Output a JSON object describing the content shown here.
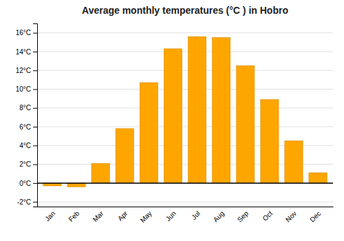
{
  "chart_data": {
    "type": "bar",
    "title": "Average monthly temperatures (°C ) in Hobro",
    "categories": [
      "Jan",
      "Feb",
      "Mar",
      "Apr",
      "May",
      "Jun",
      "Jul",
      "Aug",
      "Sep",
      "Oct",
      "Nov",
      "Dec"
    ],
    "values": [
      -0.3,
      -0.4,
      2.1,
      5.8,
      10.7,
      14.3,
      15.6,
      15.5,
      12.5,
      8.9,
      4.5,
      1.1
    ],
    "color": "#FFA500",
    "ylim": [
      -2.5,
      17
    ],
    "yticks": [
      {
        "value": -2,
        "label": "-2°C"
      },
      {
        "value": 0,
        "label": "0°C"
      },
      {
        "value": 2,
        "label": "2°C"
      },
      {
        "value": 4,
        "label": "4°C"
      },
      {
        "value": 6,
        "label": "6°C"
      },
      {
        "value": 8,
        "label": "8°C"
      },
      {
        "value": 10,
        "label": "10°C"
      },
      {
        "value": 12,
        "label": "12°C"
      },
      {
        "value": 14,
        "label": "14°C"
      },
      {
        "value": 16,
        "label": "16°C"
      }
    ],
    "grid": true
  }
}
